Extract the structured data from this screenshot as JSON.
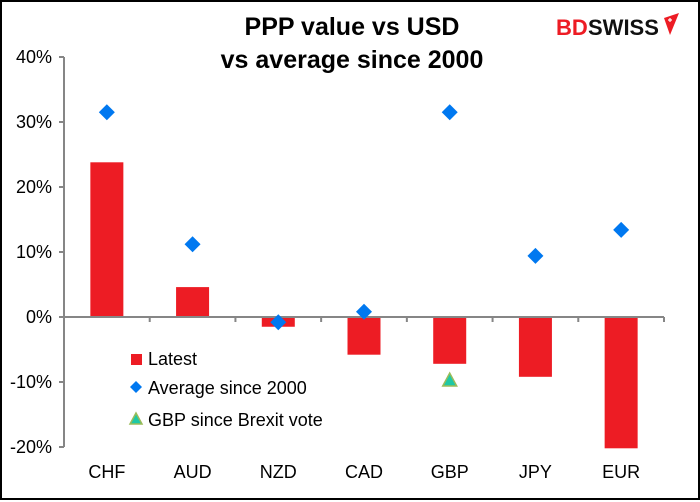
{
  "chart_data": {
    "type": "bar",
    "title": [
      "PPP value vs USD",
      "vs average since 2000"
    ],
    "xlabel": "",
    "ylabel": "",
    "categories": [
      "CHF",
      "AUD",
      "NZD",
      "CAD",
      "GBP",
      "JPY",
      "EUR"
    ],
    "ylim": [
      -20,
      40
    ],
    "yticks": [
      40,
      30,
      20,
      10,
      0,
      -10,
      -20
    ],
    "ytick_labels": [
      "40%",
      "30%",
      "20%",
      "10%",
      "0%",
      "-10%",
      "-20%"
    ],
    "grid": false,
    "legend_position": "bottom-left",
    "series": [
      {
        "name": "Latest",
        "kind": "bar",
        "color": "#ed1c24",
        "values": [
          23.8,
          4.6,
          -1.5,
          -5.8,
          -7.2,
          -9.2,
          -20.2
        ]
      },
      {
        "name": "Average since 2000",
        "kind": "diamond-marker",
        "color": "#0078f0",
        "values": [
          31.5,
          11.2,
          -0.8,
          0.8,
          31.5,
          9.4,
          13.4
        ]
      },
      {
        "name": "GBP since Brexit vote",
        "kind": "triangle-marker",
        "color": "#1ec8a5",
        "outline": "#9bbb59",
        "values": [
          null,
          null,
          null,
          null,
          -9.7,
          null,
          null
        ]
      }
    ]
  },
  "branding": {
    "logo_part1": "BD",
    "logo_part2": "SWISS"
  }
}
